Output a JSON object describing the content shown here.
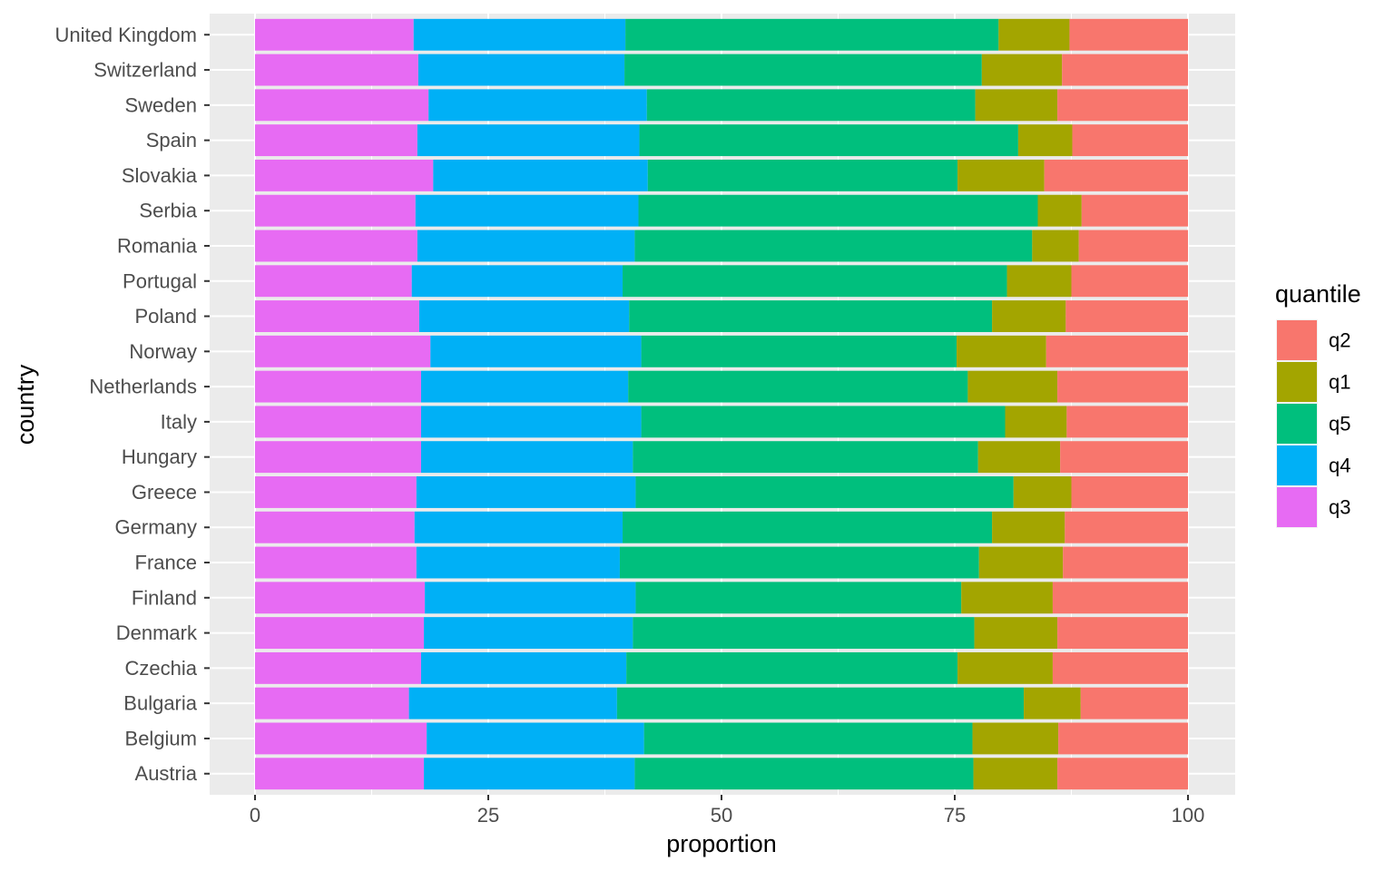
{
  "chart_data": {
    "type": "bar",
    "orientation": "horizontal",
    "stacked": true,
    "xlabel": "proportion",
    "ylabel": "country",
    "xlim": [
      0,
      100
    ],
    "xticks": [
      0,
      25,
      50,
      75,
      100
    ],
    "xtick_labels": [
      "0",
      "25",
      "50",
      "75",
      "100"
    ],
    "grid": true,
    "legend": {
      "title": "quantile",
      "position": "right"
    },
    "categories": [
      "Austria",
      "Belgium",
      "Bulgaria",
      "Czechia",
      "Denmark",
      "Finland",
      "France",
      "Germany",
      "Greece",
      "Hungary",
      "Italy",
      "Netherlands",
      "Norway",
      "Poland",
      "Portugal",
      "Romania",
      "Serbia",
      "Slovakia",
      "Spain",
      "Sweden",
      "Switzerland",
      "United Kingdom"
    ],
    "stack_order": [
      "q3",
      "q4",
      "q5",
      "q1",
      "q2"
    ],
    "legend_order": [
      "q2",
      "q1",
      "q5",
      "q4",
      "q3"
    ],
    "series": [
      {
        "name": "q3",
        "color": "#E76BF3",
        "values": [
          18.1,
          18.4,
          16.5,
          17.8,
          18.1,
          18.2,
          17.3,
          17.1,
          17.3,
          17.8,
          17.8,
          17.8,
          18.8,
          17.6,
          16.8,
          17.4,
          17.2,
          19.1,
          17.4,
          18.6,
          17.5,
          17.0
        ]
      },
      {
        "name": "q4",
        "color": "#00B0F6",
        "values": [
          22.6,
          23.3,
          22.3,
          22.0,
          22.4,
          22.6,
          21.8,
          22.3,
          23.5,
          22.7,
          23.6,
          22.2,
          22.6,
          22.5,
          22.6,
          23.3,
          23.9,
          23.0,
          23.8,
          23.4,
          22.1,
          22.7
        ]
      },
      {
        "name": "q5",
        "color": "#00BF7D",
        "values": [
          36.3,
          35.2,
          43.6,
          35.5,
          36.6,
          34.9,
          38.5,
          39.6,
          40.5,
          37.0,
          39.0,
          36.4,
          33.8,
          38.9,
          41.2,
          42.6,
          42.8,
          33.2,
          40.6,
          35.2,
          38.3,
          40.0
        ]
      },
      {
        "name": "q1",
        "color": "#A3A500",
        "values": [
          9.0,
          9.2,
          6.1,
          10.2,
          8.9,
          9.8,
          9.0,
          7.8,
          6.2,
          8.8,
          6.6,
          9.6,
          9.6,
          7.9,
          6.9,
          5.0,
          4.7,
          9.3,
          5.8,
          8.8,
          8.6,
          7.6
        ]
      },
      {
        "name": "q2",
        "color": "#F8766D",
        "values": [
          14.0,
          13.9,
          11.5,
          14.5,
          14.0,
          14.5,
          13.4,
          13.2,
          12.5,
          13.7,
          13.0,
          14.0,
          15.2,
          13.1,
          12.5,
          11.7,
          11.4,
          15.4,
          12.4,
          14.0,
          13.5,
          12.7
        ]
      }
    ]
  }
}
